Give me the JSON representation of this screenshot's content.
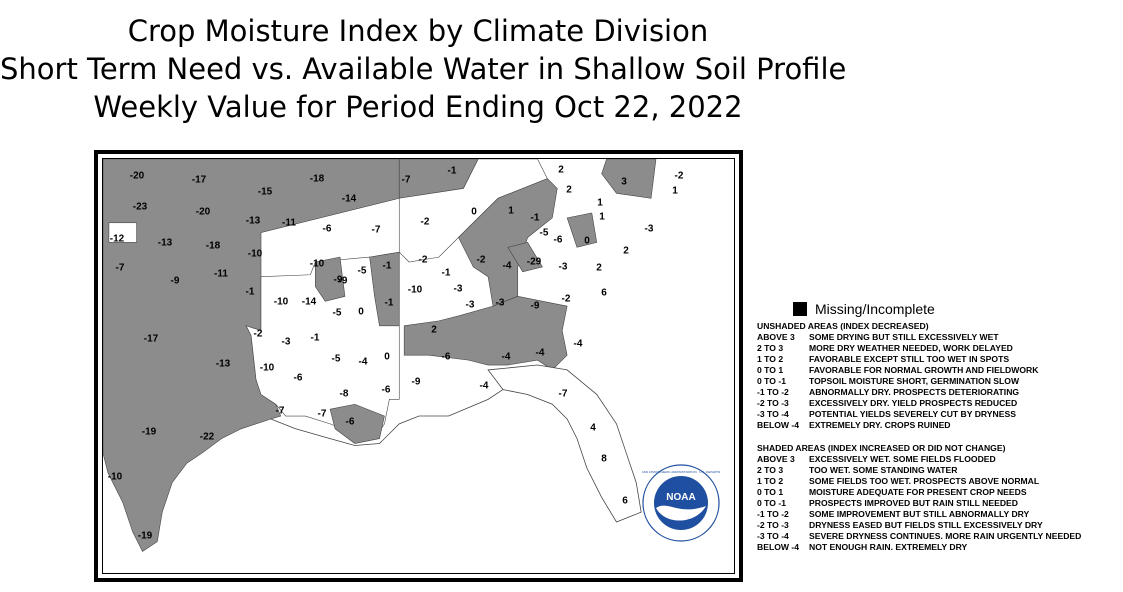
{
  "title": {
    "line1": "Crop Moisture Index by Climate Division",
    "line2": "Short Term Need vs. Available Water in Shallow Soil Profile",
    "line3": "Weekly Value for Period Ending Oct 22, 2022"
  },
  "colors": {
    "shaded": "#8c8c8c",
    "unshaded": "#ffffff",
    "missing": "#000000",
    "noaa_blue": "#1f4fa0"
  },
  "map": {
    "labels": [
      {
        "text": "-20"
      },
      {
        "text": "-17"
      },
      {
        "text": "-15"
      },
      {
        "text": "-18"
      },
      {
        "text": "-7"
      },
      {
        "text": "-1"
      },
      {
        "text": "2"
      },
      {
        "text": "3"
      },
      {
        "text": "-2"
      },
      {
        "text": "-23"
      },
      {
        "text": "-20"
      },
      {
        "text": "-14"
      },
      {
        "text": "2"
      },
      {
        "text": "1"
      },
      {
        "text": "-13"
      },
      {
        "text": "-11"
      },
      {
        "text": "-6"
      },
      {
        "text": "-7"
      },
      {
        "text": "-2"
      },
      {
        "text": "0"
      },
      {
        "text": "1"
      },
      {
        "text": "-1"
      },
      {
        "text": "1"
      },
      {
        "text": "1"
      },
      {
        "text": "-3"
      },
      {
        "text": "-12"
      },
      {
        "text": "-13"
      },
      {
        "text": "-18"
      },
      {
        "text": "-5"
      },
      {
        "text": "-6"
      },
      {
        "text": "0"
      },
      {
        "text": "-10"
      },
      {
        "text": "2"
      },
      {
        "text": "-7"
      },
      {
        "text": "-9"
      },
      {
        "text": "-9"
      },
      {
        "text": "-10"
      },
      {
        "text": "-5"
      },
      {
        "text": "-1"
      },
      {
        "text": "-2"
      },
      {
        "text": "-2"
      },
      {
        "text": "-4"
      },
      {
        "text": "-29"
      },
      {
        "text": "-3"
      },
      {
        "text": "2"
      },
      {
        "text": "-11"
      },
      {
        "text": "-9"
      },
      {
        "text": "-1"
      },
      {
        "text": "-10"
      },
      {
        "text": "-1"
      },
      {
        "text": "-3"
      },
      {
        "text": "6"
      },
      {
        "text": "-10"
      },
      {
        "text": "-14"
      },
      {
        "text": "-5"
      },
      {
        "text": "0"
      },
      {
        "text": "-1"
      },
      {
        "text": "-3"
      },
      {
        "text": "-3"
      },
      {
        "text": "-9"
      },
      {
        "text": "-2"
      },
      {
        "text": "-17"
      },
      {
        "text": "-2"
      },
      {
        "text": "-3"
      },
      {
        "text": "-1"
      },
      {
        "text": "2"
      },
      {
        "text": "-4"
      },
      {
        "text": "-5"
      },
      {
        "text": "-4"
      },
      {
        "text": "0"
      },
      {
        "text": "-6"
      },
      {
        "text": "-4"
      },
      {
        "text": "-4"
      },
      {
        "text": "-13"
      },
      {
        "text": "-10"
      },
      {
        "text": "-6"
      },
      {
        "text": "-8"
      },
      {
        "text": "-6"
      },
      {
        "text": "-9"
      },
      {
        "text": "-4"
      },
      {
        "text": "-7"
      },
      {
        "text": "-7"
      },
      {
        "text": "-7"
      },
      {
        "text": "-6"
      },
      {
        "text": "4"
      },
      {
        "text": "-19"
      },
      {
        "text": "-22"
      },
      {
        "text": "8"
      },
      {
        "text": "-10"
      },
      {
        "text": "6"
      },
      {
        "text": "-19"
      }
    ]
  },
  "legend": {
    "missing_label": "Missing/Incomplete",
    "unshaded_heading": "UNSHADED AREAS (INDEX DECREASED)",
    "unshaded_rows": [
      {
        "range": "ABOVE 3",
        "desc": "SOME DRYING BUT STILL EXCESSIVELY WET"
      },
      {
        "range": "2 TO 3",
        "desc": "MORE DRY WEATHER NEEDED, WORK DELAYED"
      },
      {
        "range": "1 TO 2",
        "desc": "FAVORABLE EXCEPT STILL TOO WET IN SPOTS"
      },
      {
        "range": "0 TO 1",
        "desc": "FAVORABLE FOR NORMAL GROWTH AND FIELDWORK"
      },
      {
        "range": "0 TO -1",
        "desc": "TOPSOIL MOISTURE SHORT, GERMINATION SLOW"
      },
      {
        "range": "-1 TO -2",
        "desc": "ABNORMALLY DRY. PROSPECTS DETERIORATING"
      },
      {
        "range": "-2 TO -3",
        "desc": "EXCESSIVELY DRY. YIELD PROSPECTS REDUCED"
      },
      {
        "range": "-3 TO -4",
        "desc": "POTENTIAL YIELDS SEVERELY CUT BY DRYNESS"
      },
      {
        "range": "BELOW -4",
        "desc": "EXTREMELY DRY. CROPS RUINED"
      }
    ],
    "shaded_heading": "SHADED AREAS (INDEX INCREASED OR DID NOT CHANGE)",
    "shaded_rows": [
      {
        "range": "ABOVE 3",
        "desc": "EXCESSIVELY WET. SOME FIELDS FLOODED"
      },
      {
        "range": "2 TO 3",
        "desc": "TOO WET. SOME STANDING WATER"
      },
      {
        "range": "1 TO 2",
        "desc": "SOME FIELDS TOO WET. PROSPECTS ABOVE NORMAL"
      },
      {
        "range": "0 TO 1",
        "desc": "MOISTURE ADEQUATE FOR PRESENT CROP NEEDS"
      },
      {
        "range": "0 TO -1",
        "desc": "PROSPECTS IMPROVED BUT RAIN STILL NEEDED"
      },
      {
        "range": "-1 TO -2",
        "desc": "SOME IMPROVEMENT BUT STILL ABNORMALLY DRY"
      },
      {
        "range": "-2 TO -3",
        "desc": "DRYNESS EASED BUT FIELDS STILL EXCESSIVELY DRY"
      },
      {
        "range": "-3 TO -4",
        "desc": "SEVERE DRYNESS CONTINUES. MORE RAIN URGENTLY NEEDED"
      },
      {
        "range": "BELOW -4",
        "desc": "NOT ENOUGH RAIN. EXTREMELY DRY"
      }
    ]
  },
  "logo": {
    "text": "NOAA",
    "ring_text": "NATIONAL OCEANIC AND ATMOSPHERIC ADMINISTRATION · U.S. DEPARTMENT OF COMMERCE"
  }
}
